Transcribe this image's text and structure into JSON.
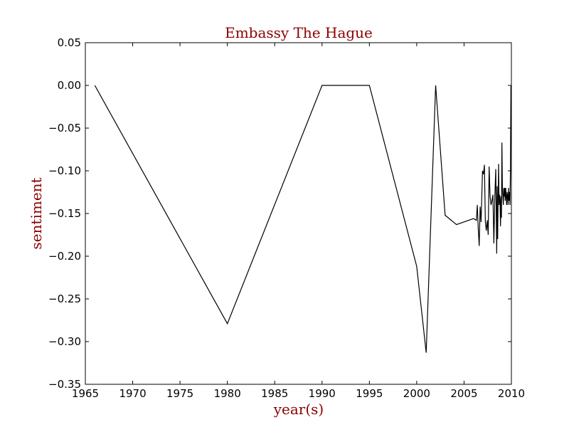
{
  "chart_data": {
    "type": "line",
    "title": "Embassy The Hague",
    "xlabel": "year(s)",
    "ylabel": "sentiment",
    "xlim": [
      1965,
      2010
    ],
    "ylim": [
      -0.35,
      0.05
    ],
    "xticks": [
      1965,
      1970,
      1975,
      1980,
      1985,
      1990,
      1995,
      2000,
      2005,
      2010
    ],
    "yticks": [
      0.05,
      0.0,
      -0.05,
      -0.1,
      -0.15,
      -0.2,
      -0.25,
      -0.3,
      -0.35
    ],
    "xtick_labels": [
      "1965",
      "1970",
      "1975",
      "1980",
      "1985",
      "1990",
      "1995",
      "2000",
      "2005",
      "2010"
    ],
    "ytick_labels": [
      "0.05",
      "0.00",
      "−0.05",
      "−0.10",
      "−0.15",
      "−0.20",
      "−0.25",
      "−0.30",
      "−0.35"
    ],
    "grid": false,
    "colors": {
      "title": "#8b0000",
      "axis_label": "#8b0000",
      "line": "#000000"
    },
    "series": [
      {
        "x": [
          1966.0,
          1980.0,
          1990.0,
          1995.0,
          2000.0,
          2001.0,
          2002.0,
          2003.0,
          2004.2,
          2006.0,
          2006.3,
          2006.4,
          2006.5,
          2006.6,
          2006.7,
          2006.8,
          2006.95,
          2007.05,
          2007.15,
          2007.25,
          2007.35,
          2007.45,
          2007.55,
          2007.65,
          2007.75,
          2007.85,
          2007.95,
          2008.05,
          2008.15,
          2008.25,
          2008.35,
          2008.45,
          2008.5,
          2008.55,
          2008.6,
          2008.65,
          2008.7,
          2008.75,
          2008.8,
          2008.85,
          2008.9,
          2008.95,
          2009.0,
          2009.05,
          2009.1,
          2009.15,
          2009.2,
          2009.25,
          2009.3,
          2009.35,
          2009.4,
          2009.45,
          2009.5,
          2009.55,
          2009.6,
          2009.65,
          2009.7,
          2009.75,
          2009.8,
          2009.85,
          2009.9,
          2009.95
        ],
        "y": [
          0.0,
          -0.279,
          0.0,
          0.0,
          -0.212,
          -0.313,
          0.0,
          -0.152,
          -0.163,
          -0.156,
          -0.158,
          -0.14,
          -0.168,
          -0.188,
          -0.142,
          -0.16,
          -0.1,
          -0.104,
          -0.093,
          -0.16,
          -0.17,
          -0.158,
          -0.175,
          -0.095,
          -0.13,
          -0.14,
          -0.135,
          -0.128,
          -0.185,
          -0.13,
          -0.098,
          -0.197,
          -0.118,
          -0.18,
          -0.13,
          -0.092,
          -0.14,
          -0.128,
          -0.135,
          -0.165,
          -0.13,
          -0.155,
          -0.067,
          -0.12,
          -0.13,
          -0.14,
          -0.12,
          -0.13,
          -0.12,
          -0.135,
          -0.12,
          -0.13,
          -0.14,
          -0.125,
          -0.13,
          -0.14,
          -0.12,
          -0.135,
          -0.125,
          -0.14,
          -0.1,
          0.0
        ]
      }
    ]
  }
}
